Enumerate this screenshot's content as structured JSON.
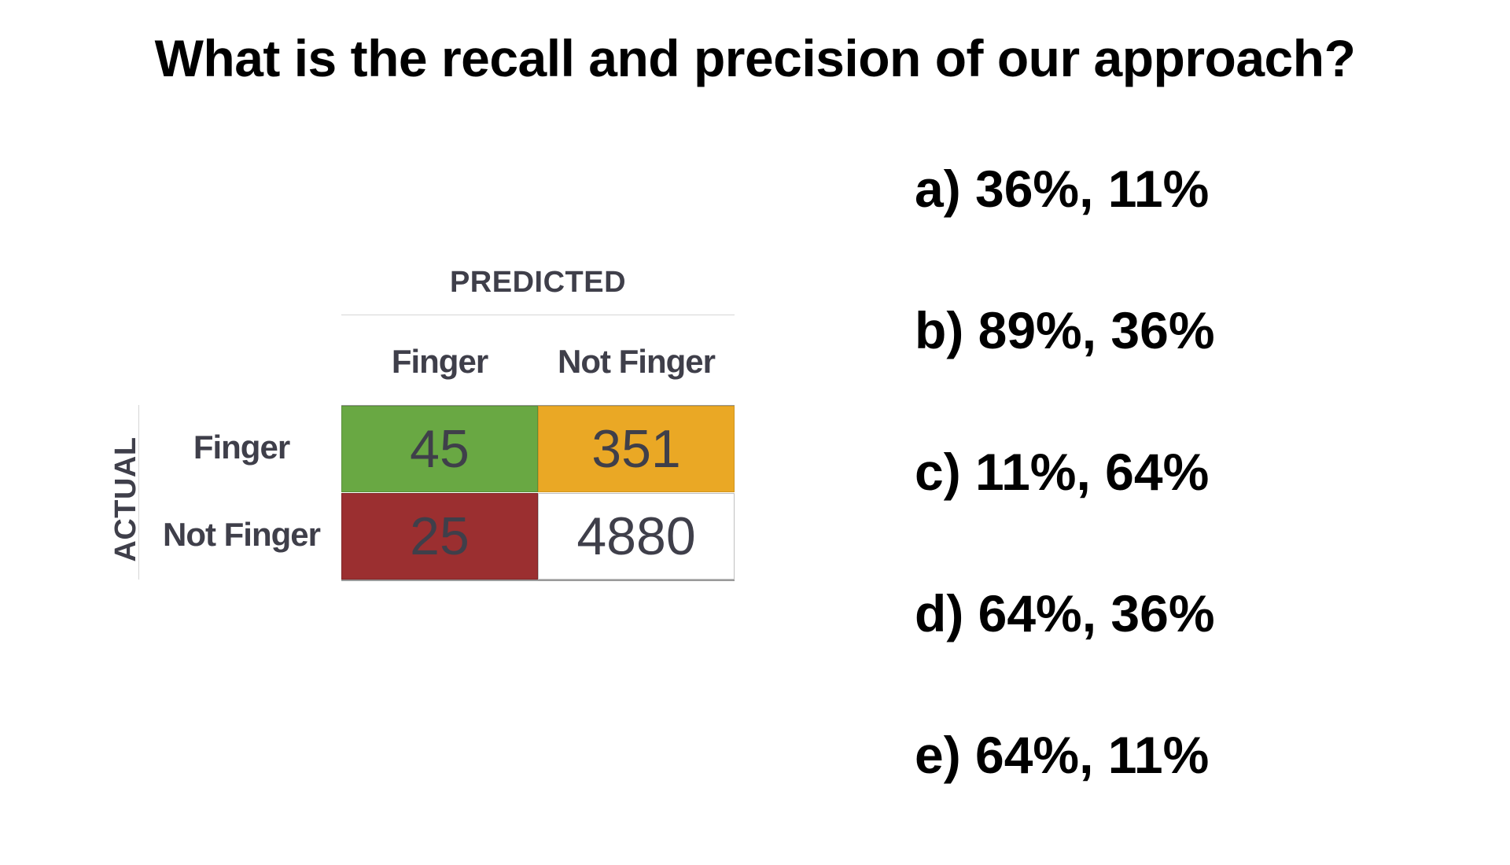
{
  "question": {
    "part1": "What is the ",
    "part2": "recall",
    "part3": " and ",
    "part4": "precision",
    "part5": " of our approach?"
  },
  "matrix": {
    "predicted_label": "PREDICTED",
    "actual_label": "ACTUAL",
    "columns": [
      "Finger",
      "Not Finger"
    ],
    "rows": [
      "Finger",
      "Not Finger"
    ],
    "cells": {
      "tp": "45",
      "fn": "351",
      "fp": "25",
      "tn": "4880"
    },
    "colors": {
      "tp": "#69a843",
      "fn": "#eaa825",
      "fp": "#9b2f30",
      "tn": "#ffffff"
    }
  },
  "options": [
    "a) 36%, 11%",
    "b) 89%, 36%",
    "c) 11%, 64%",
    "d) 64%, 36%",
    "e) 64%, 11%"
  ]
}
